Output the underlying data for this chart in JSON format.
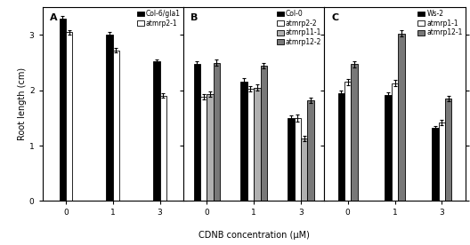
{
  "panel_A": {
    "title": "A",
    "categories": [
      "0",
      "1",
      "3"
    ],
    "series": [
      {
        "label": "Col-6/gla1",
        "color": "#000000",
        "values": [
          3.3,
          3.0,
          2.52
        ],
        "errors": [
          0.05,
          0.05,
          0.04
        ]
      },
      {
        "label": "atmrp2-1",
        "color": "#ffffff",
        "values": [
          3.05,
          2.72,
          1.9
        ],
        "errors": [
          0.04,
          0.04,
          0.04
        ]
      }
    ]
  },
  "panel_B": {
    "title": "B",
    "categories": [
      "0",
      "1",
      "3"
    ],
    "series": [
      {
        "label": "Col-0",
        "color": "#000000",
        "values": [
          2.47,
          2.15,
          1.5
        ],
        "errors": [
          0.06,
          0.07,
          0.05
        ]
      },
      {
        "label": "atmrp2-2",
        "color": "#ffffff",
        "values": [
          1.88,
          2.03,
          1.5
        ],
        "errors": [
          0.05,
          0.05,
          0.06
        ]
      },
      {
        "label": "atmrp11-1",
        "color": "#b0b0b0",
        "values": [
          1.93,
          2.05,
          1.13
        ],
        "errors": [
          0.05,
          0.05,
          0.05
        ]
      },
      {
        "label": "atmrp12-2",
        "color": "#787878",
        "values": [
          2.5,
          2.45,
          1.82
        ],
        "errors": [
          0.05,
          0.05,
          0.05
        ]
      }
    ]
  },
  "panel_C": {
    "title": "C",
    "categories": [
      "0",
      "1",
      "3"
    ],
    "series": [
      {
        "label": "Ws-2",
        "color": "#000000",
        "values": [
          1.95,
          1.92,
          1.32
        ],
        "errors": [
          0.05,
          0.05,
          0.04
        ]
      },
      {
        "label": "atmrp1-1",
        "color": "#ffffff",
        "values": [
          2.15,
          2.13,
          1.42
        ],
        "errors": [
          0.06,
          0.06,
          0.05
        ]
      },
      {
        "label": "atmrp12-1",
        "color": "#787878",
        "values": [
          2.47,
          3.03,
          1.85
        ],
        "errors": [
          0.06,
          0.05,
          0.05
        ]
      }
    ]
  },
  "ylim": [
    0,
    3.5
  ],
  "yticks": [
    0,
    1,
    2,
    3
  ],
  "ylabel": "Root length (cm)",
  "xlabel": "CDNB concentration (μM)",
  "bar_width": 0.14,
  "edgecolor": "#000000",
  "background_color": "#ffffff",
  "tick_fontsize": 6.5,
  "label_fontsize": 7,
  "legend_fontsize": 5.5
}
